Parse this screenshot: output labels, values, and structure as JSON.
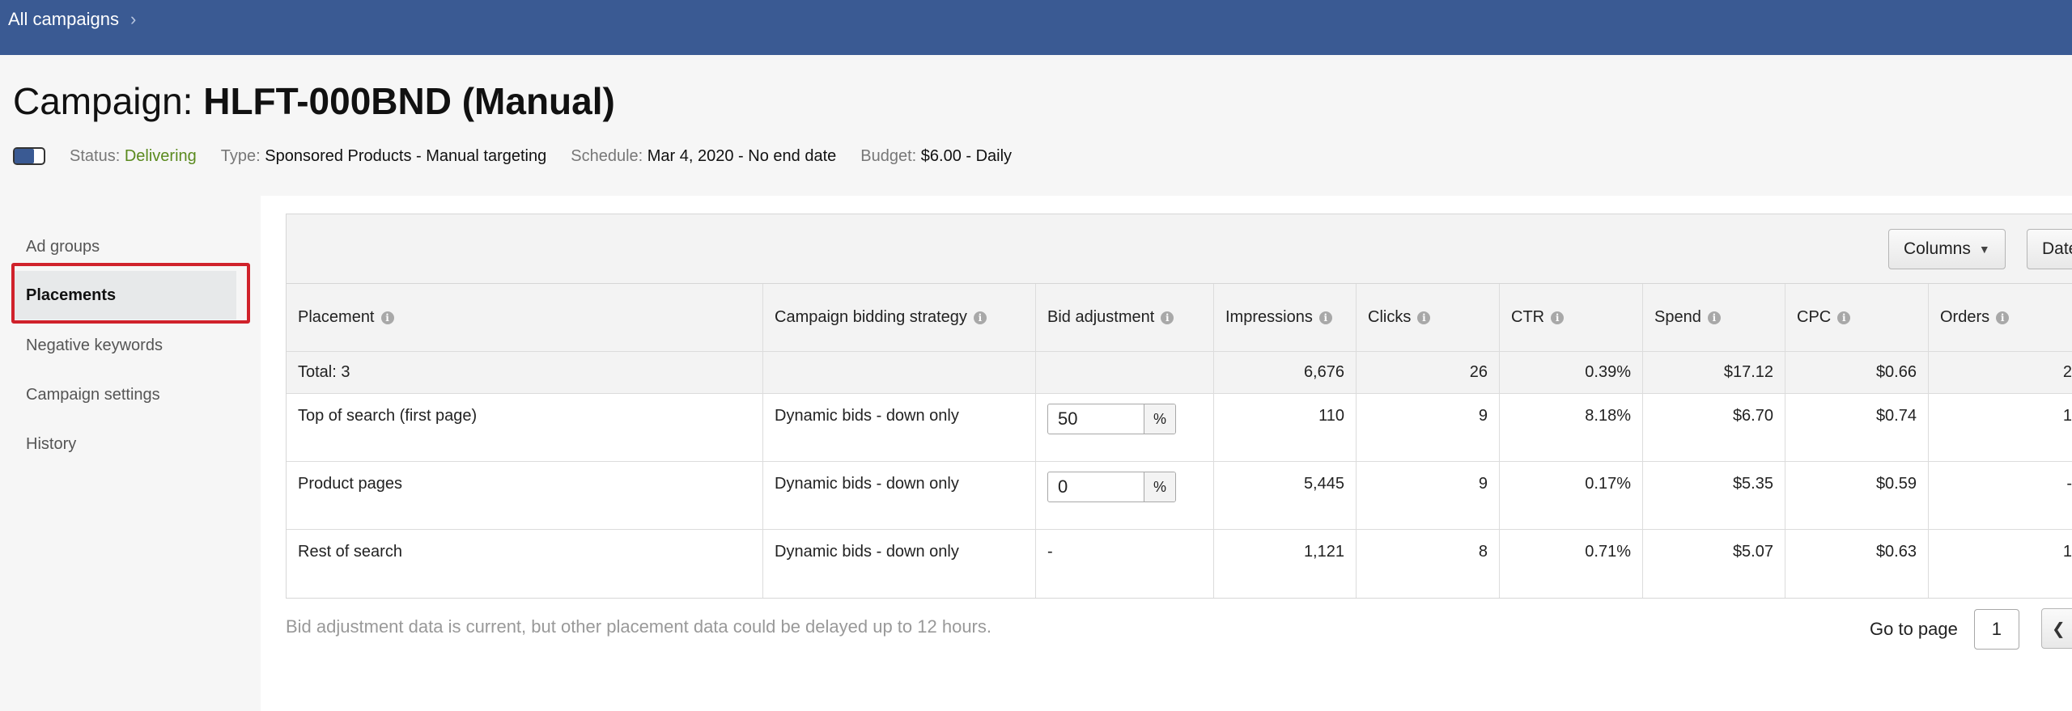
{
  "nav": {
    "breadcrumb": "All campaigns",
    "chevron": "›"
  },
  "campaign": {
    "title_prefix": "Campaign: ",
    "name": "HLFT-000BND (Manual)",
    "status_label": "Status:",
    "status_value": "Delivering",
    "type_label": "Type:",
    "type_value": "Sponsored Products - Manual targeting",
    "schedule_label": "Schedule:",
    "schedule_value": "Mar 4, 2020 - No end date",
    "budget_label": "Budget:",
    "budget_value": "$6.00 - Daily",
    "enabled": true
  },
  "sidebar": {
    "items": [
      {
        "label": "Ad groups"
      },
      {
        "label": "Placements"
      },
      {
        "label": "Negative keywords"
      },
      {
        "label": "Campaign settings"
      },
      {
        "label": "History"
      }
    ],
    "active": "Placements"
  },
  "toolbar": {
    "columns_label": "Columns",
    "date_label": "Date"
  },
  "table": {
    "headers": [
      "Placement",
      "Campaign bidding strategy",
      "Bid adjustment",
      "Impressions",
      "Clicks",
      "CTR",
      "Spend",
      "CPC",
      "Orders"
    ],
    "total": {
      "label": "Total: 3",
      "impressions": "6,676",
      "clicks": "26",
      "ctr": "0.39%",
      "spend": "$17.12",
      "cpc": "$0.66",
      "orders": "2"
    },
    "rows": [
      {
        "placement": "Top of search (first page)",
        "strategy": "Dynamic bids - down only",
        "bid": "50",
        "bid_unit": "%",
        "impressions": "110",
        "clicks": "9",
        "ctr": "8.18%",
        "spend": "$6.70",
        "cpc": "$0.74",
        "orders": "1"
      },
      {
        "placement": "Product pages",
        "strategy": "Dynamic bids - down only",
        "bid": "0",
        "bid_unit": "%",
        "impressions": "5,445",
        "clicks": "9",
        "ctr": "0.17%",
        "spend": "$5.35",
        "cpc": "$0.59",
        "orders": "-"
      },
      {
        "placement": "Rest of search",
        "strategy": "Dynamic bids - down only",
        "bid": "-",
        "impressions": "1,121",
        "clicks": "8",
        "ctr": "0.71%",
        "spend": "$5.07",
        "cpc": "$0.63",
        "orders": "1"
      }
    ]
  },
  "footer": {
    "note": "Bid adjustment data is current, but other placement data could be delayed up to 12 hours.",
    "goto_label": "Go to page",
    "page": "1"
  },
  "colors": {
    "nav_bg": "#3a5a93",
    "highlight": "#d0222b",
    "status_green": "#5a8a1e"
  },
  "icons": [
    "chevron-right-icon",
    "info-icon",
    "caret-down-icon",
    "chevron-left-icon"
  ]
}
